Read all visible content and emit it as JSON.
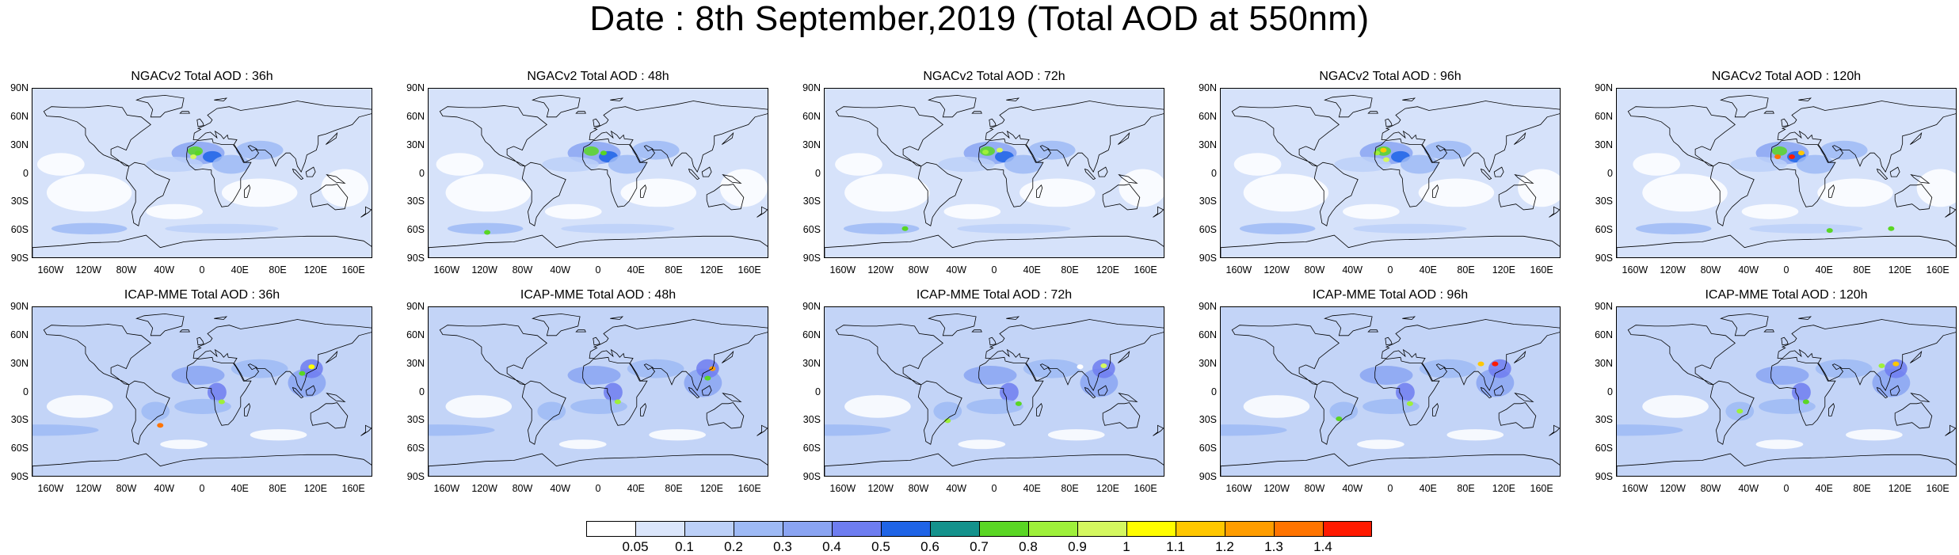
{
  "title": "Date : 8th September,2019 (Total AOD at 550nm)",
  "lat_labels": [
    "90N",
    "60N",
    "30N",
    "0",
    "30S",
    "60S",
    "90S"
  ],
  "lon_labels": [
    "160W",
    "120W",
    "80W",
    "40W",
    "0",
    "40E",
    "80E",
    "120E",
    "160E"
  ],
  "panels": [
    {
      "title": "NGACv2 Total AOD : 36h"
    },
    {
      "title": "NGACv2 Total AOD : 48h"
    },
    {
      "title": "NGACv2 Total AOD : 72h"
    },
    {
      "title": "NGACv2 Total AOD : 96h"
    },
    {
      "title": "NGACv2 Total AOD : 120h"
    },
    {
      "title": "ICAP-MME Total AOD : 36h"
    },
    {
      "title": "ICAP-MME Total AOD : 48h"
    },
    {
      "title": "ICAP-MME Total AOD : 72h"
    },
    {
      "title": "ICAP-MME Total AOD : 96h"
    },
    {
      "title": "ICAP-MME Total AOD : 120h"
    }
  ],
  "colorbar": {
    "labels": [
      "0.05",
      "0.1",
      "0.2",
      "0.3",
      "0.4",
      "0.5",
      "0.6",
      "0.7",
      "0.8",
      "0.9",
      "1",
      "1.1",
      "1.2",
      "1.3",
      "1.4"
    ],
    "colors": [
      "#ffffff",
      "#dbe6fb",
      "#bcd0f8",
      "#9ebaf5",
      "#8aa4f2",
      "#6e7df0",
      "#1f64e6",
      "#14928c",
      "#5ad624",
      "#9ef03a",
      "#d4f760",
      "#fffd00",
      "#ffc700",
      "#ff9d00",
      "#ff7400",
      "#ff1a00"
    ]
  }
}
